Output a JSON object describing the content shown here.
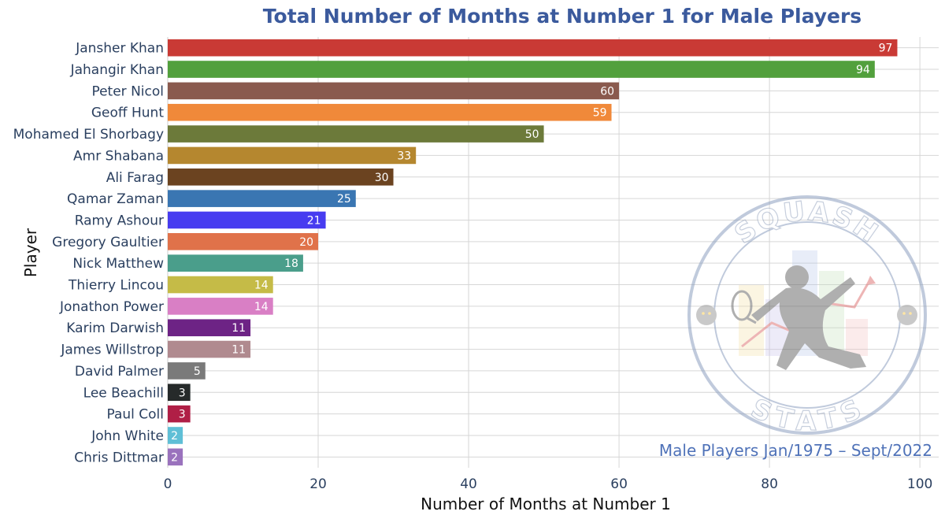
{
  "chart_data": {
    "type": "bar",
    "orientation": "horizontal",
    "title": "Total Number of Months at Number 1 for Male Players",
    "xlabel": "Number of Months at Number 1",
    "ylabel": "Player",
    "xlim": [
      0,
      100
    ],
    "xticks": [
      0,
      20,
      40,
      60,
      80,
      100
    ],
    "grid": true,
    "annotation": "Male Players Jan/1975 – Sept/2022",
    "categories": [
      "Jansher Khan",
      "Jahangir Khan",
      "Peter Nicol",
      "Geoff Hunt",
      "Mohamed El Shorbagy",
      "Amr Shabana",
      "Ali Farag",
      "Qamar Zaman",
      "Ramy Ashour",
      "Gregory Gaultier",
      "Nick Matthew",
      "Thierry Lincou",
      "Jonathon Power",
      "Karim Darwish",
      "James Willstrop",
      "David Palmer",
      "Lee Beachill",
      "Paul Coll",
      "John White",
      "Chris Dittmar"
    ],
    "values": [
      97,
      94,
      60,
      59,
      50,
      33,
      30,
      25,
      21,
      20,
      18,
      14,
      14,
      11,
      11,
      5,
      3,
      3,
      2,
      2
    ],
    "colors": [
      "#c93a35",
      "#52a03d",
      "#8a5a4e",
      "#f0893a",
      "#6c7a3a",
      "#b5872f",
      "#6b4320",
      "#3a76b2",
      "#473cf0",
      "#e0724a",
      "#4a9e8b",
      "#c5bb47",
      "#d97fc5",
      "#6d2385",
      "#b08a8f",
      "#7a7a7a",
      "#262a2a",
      "#b01f46",
      "#5fbfd6",
      "#9a72bd"
    ]
  },
  "watermark": {
    "top_text": "SQUASH",
    "bottom_text": "STATS"
  }
}
